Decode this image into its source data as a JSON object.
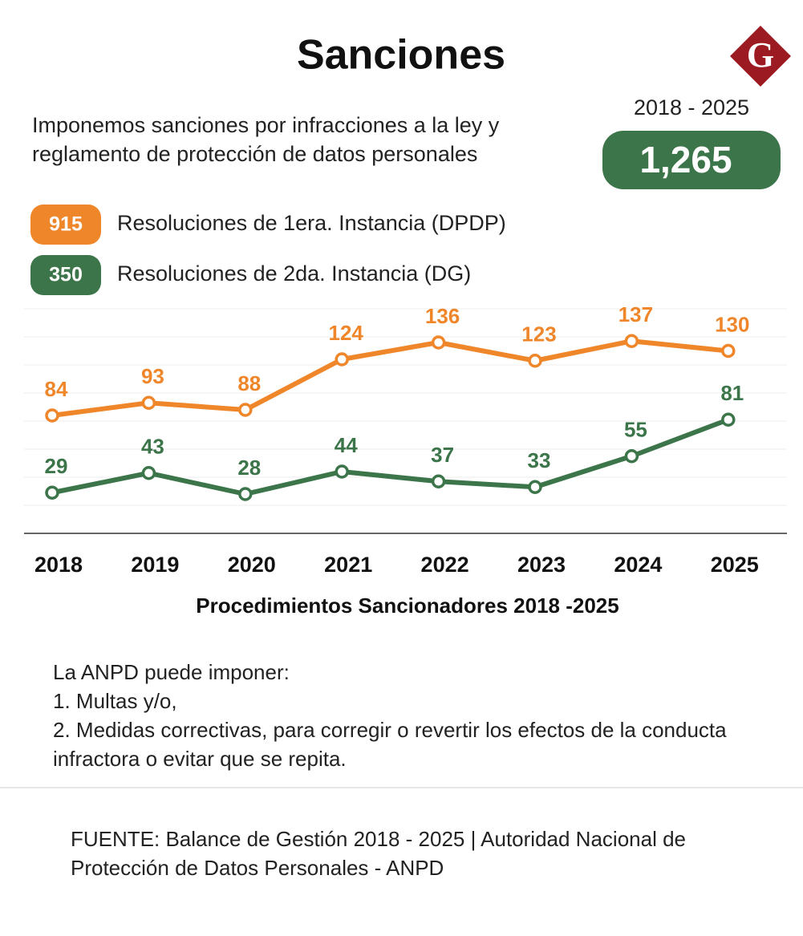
{
  "logo": "G",
  "chart_data": {
    "type": "line",
    "title": "Sanciones",
    "subtitle": "Imponemos sanciones por infracciones a la ley y reglamento de protección de datos personales",
    "period": "2018 - 2025",
    "total": {
      "value": 1265,
      "label": "1,265"
    },
    "categories": [
      "2018",
      "2019",
      "2020",
      "2021",
      "2022",
      "2023",
      "2024",
      "2025"
    ],
    "series": [
      {
        "name": "Resoluciones de 1era. Instancia (DPDP)",
        "total": 915,
        "color": "#f0862a",
        "values": [
          84,
          93,
          88,
          124,
          136,
          123,
          137,
          130
        ]
      },
      {
        "name": "Resoluciones de 2da. Instancia (DG)",
        "total": 350,
        "color": "#3b7549",
        "values": [
          29,
          43,
          28,
          44,
          37,
          33,
          55,
          81
        ]
      }
    ],
    "xlabel": "Procedimientos Sancionadores 2018 -2025",
    "ylim": [
      0,
      160
    ],
    "yticks": [
      20,
      40,
      60,
      80,
      100,
      120,
      140,
      160
    ],
    "grid": true
  },
  "notes": [
    "La ANPD puede imponer:",
    "1. Multas y/o,",
    "2. Medidas correctivas, para corregir o revertir los efectos de la conducta infractora o evitar que se repita."
  ],
  "source": "FUENTE: Balance de Gestión 2018 - 2025 | Autoridad Nacional de Protección de Datos Personales - ANPD"
}
